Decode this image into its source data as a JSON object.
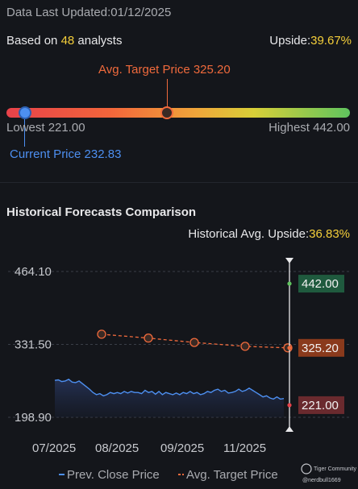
{
  "header": {
    "last_updated_label": "Data Last Updated:",
    "last_updated_value": "01/12/2025"
  },
  "analysts": {
    "prefix": "Based on ",
    "count": "48",
    "suffix": " analysts",
    "upside_label": "Upside:",
    "upside_value": "39.67%"
  },
  "target_range": {
    "avg_label": "Avg. Target Price 325.20",
    "lowest_label": "Lowest 221.00",
    "highest_label": "Highest 442.00",
    "current_label": "Current Price 232.83",
    "lowest": 221.0,
    "highest": 442.0,
    "avg": 325.2,
    "current": 232.83,
    "colors": {
      "current": "#4d8ff0",
      "avg": "#f06a3c"
    }
  },
  "historical": {
    "title": "Historical Forecasts Comparison",
    "upside_label": "Historical Avg. Upside:",
    "upside_value": "36.83%"
  },
  "chart_data": {
    "type": "line",
    "title": "Historical Forecasts Comparison",
    "y_ticks": [
      "464.10",
      "331.50",
      "198.90"
    ],
    "ylim": [
      198.9,
      464.1
    ],
    "x_ticks": [
      "07/2025",
      "08/2025",
      "09/2025",
      "11/2025"
    ],
    "series": [
      {
        "name": "Prev. Close Price",
        "color": "#4d8ff0",
        "values": [
          266,
          267,
          264,
          265,
          268,
          263,
          262,
          265,
          260,
          255,
          250,
          244,
          240,
          242,
          238,
          240,
          244,
          242,
          244,
          242,
          246,
          243,
          246,
          244,
          244,
          242,
          248,
          244,
          246,
          241,
          246,
          240,
          244,
          242,
          240,
          243,
          240,
          244,
          242,
          246,
          242,
          244,
          240,
          242,
          246,
          244,
          248,
          250,
          246,
          248,
          243,
          244,
          246,
          250,
          246,
          248,
          252,
          248,
          244,
          240,
          236,
          238,
          234,
          232,
          236,
          232,
          233
        ]
      },
      {
        "name": "Avg. Target Price",
        "color": "#f06a3c",
        "values": [
          350,
          343,
          335,
          328,
          325.2
        ]
      }
    ],
    "flags": [
      {
        "label": "442.00",
        "value": 442.0,
        "color": "#1f5a3e",
        "dot": "#5fc45e"
      },
      {
        "label": "325.20",
        "value": 325.2,
        "color": "#8a3a1c",
        "dot": "#f06a3c"
      },
      {
        "label": "221.00",
        "value": 221.0,
        "color": "#6a2a2e",
        "dot": "#e8424a"
      }
    ],
    "grid": true,
    "legend": "bottom"
  },
  "legend": {
    "prev_close": "Prev. Close Price",
    "avg_target": "Avg. Target Price"
  },
  "watermark": {
    "line1": "Tiger Community",
    "line2": "@nerdbull1669"
  }
}
